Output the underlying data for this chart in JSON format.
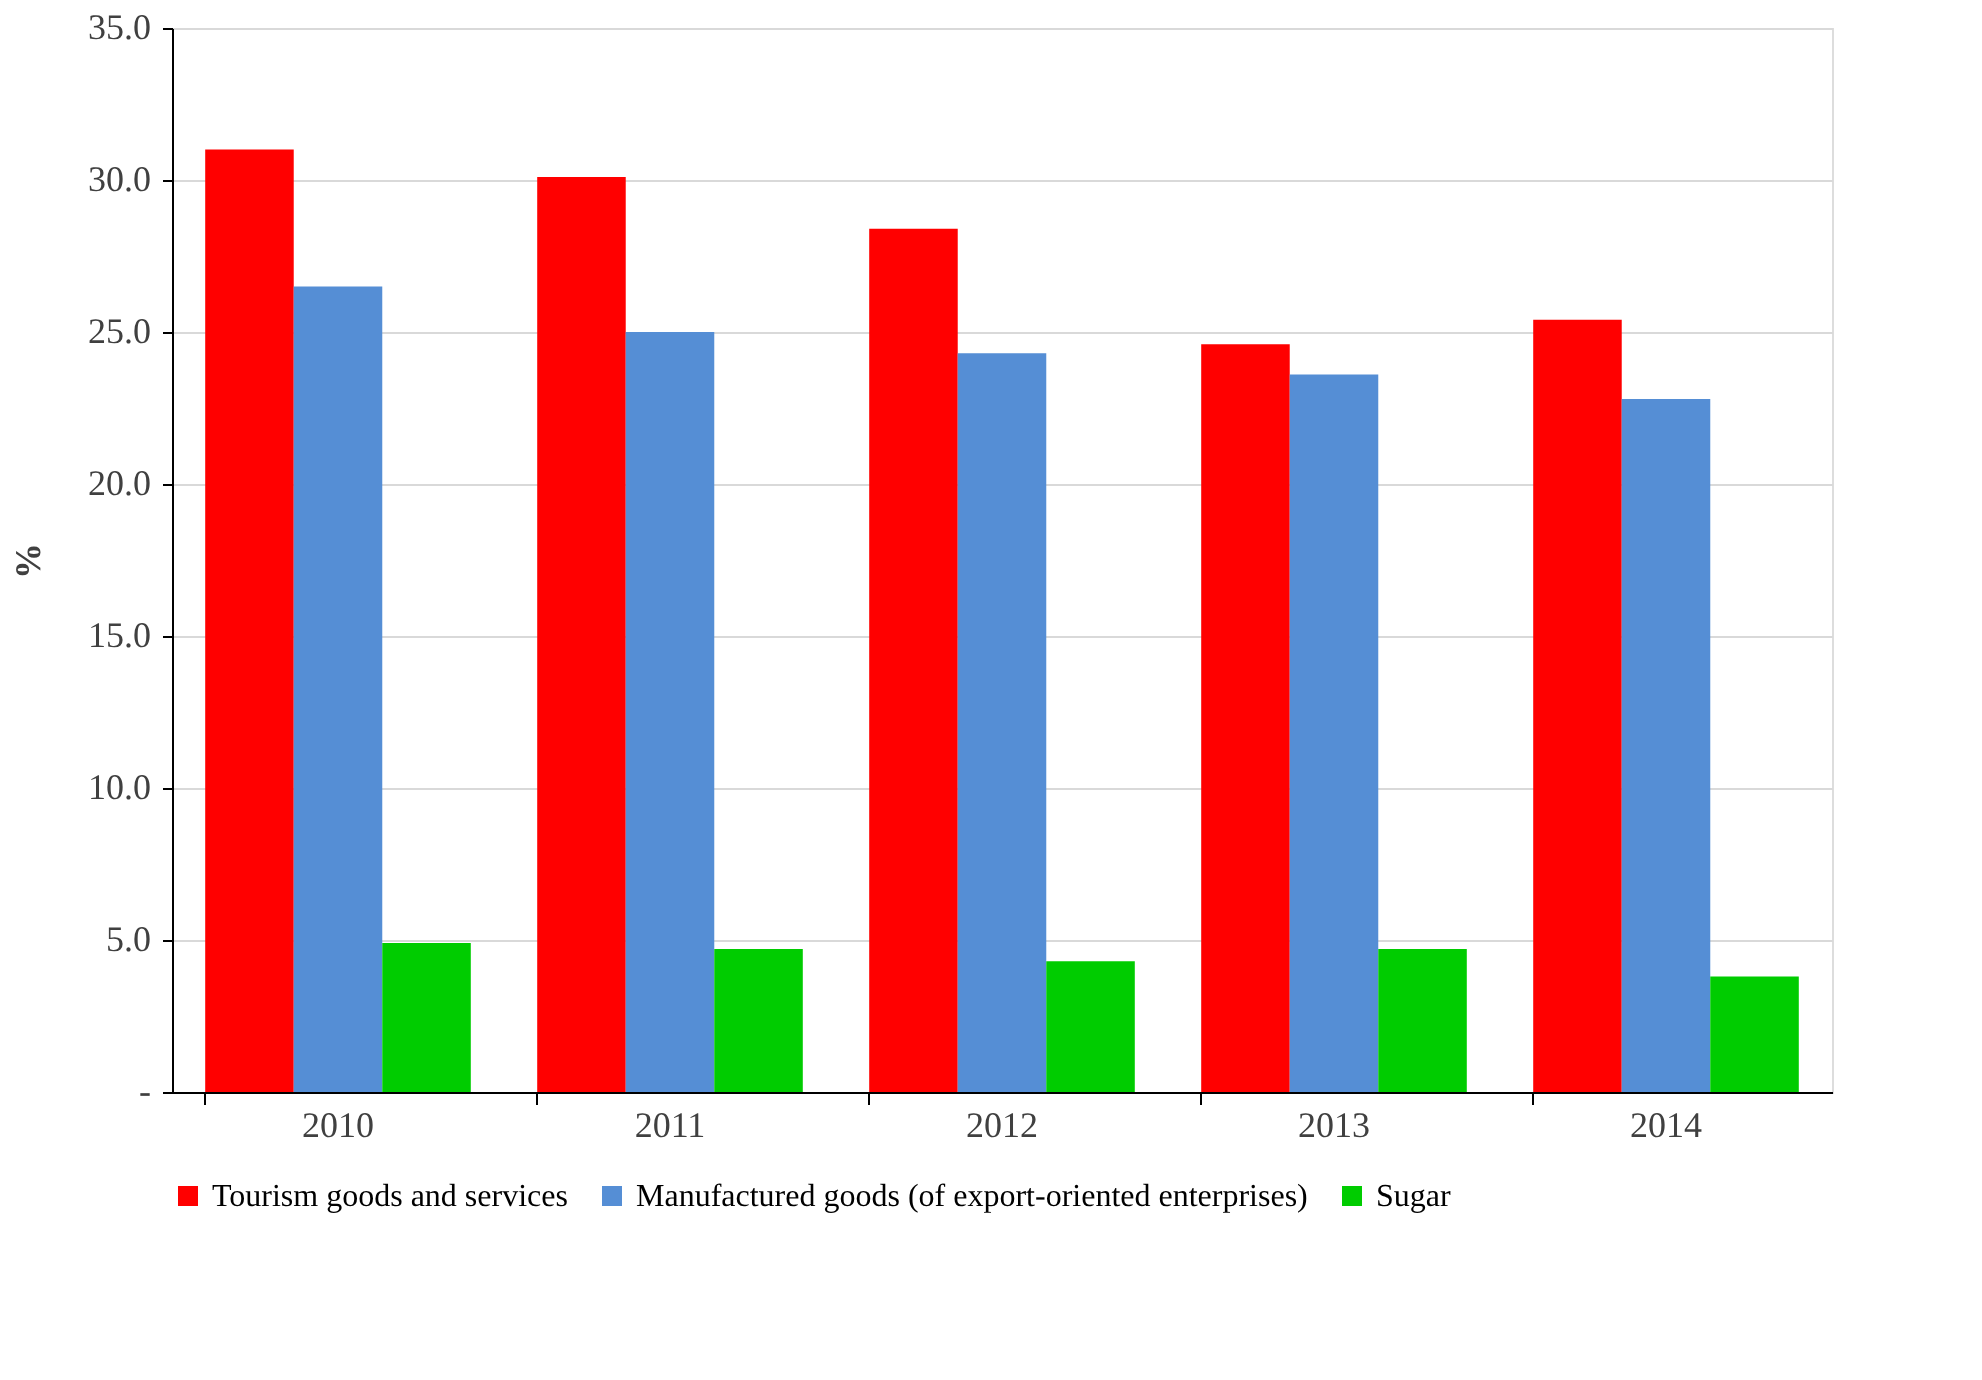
{
  "chart_data": {
    "type": "bar",
    "ylabel": "%",
    "categories": [
      "2010",
      "2011",
      "2012",
      "2013",
      "2014"
    ],
    "series": [
      {
        "name": "Tourism goods and services",
        "color": "#ff0000",
        "values": [
          31.0,
          30.1,
          28.4,
          24.6,
          25.4
        ]
      },
      {
        "name": "Manufactured goods (of export-oriented enterprises)",
        "color": "#558ed5",
        "values": [
          26.5,
          25.0,
          24.3,
          23.6,
          22.8
        ]
      },
      {
        "name": "Sugar",
        "color": "#00cc00",
        "values": [
          4.9,
          4.7,
          4.3,
          4.7,
          3.8
        ]
      }
    ],
    "ylim": [
      0,
      35
    ],
    "yticks": [
      {
        "value": 0,
        "label": "-"
      },
      {
        "value": 5,
        "label": "5.0"
      },
      {
        "value": 10,
        "label": "10.0"
      },
      {
        "value": 15,
        "label": "15.0"
      },
      {
        "value": 20,
        "label": "20.0"
      },
      {
        "value": 25,
        "label": "25.0"
      },
      {
        "value": 30,
        "label": "30.0"
      },
      {
        "value": 35,
        "label": "35.0"
      }
    ],
    "grid": "y",
    "legend": "bottom"
  }
}
